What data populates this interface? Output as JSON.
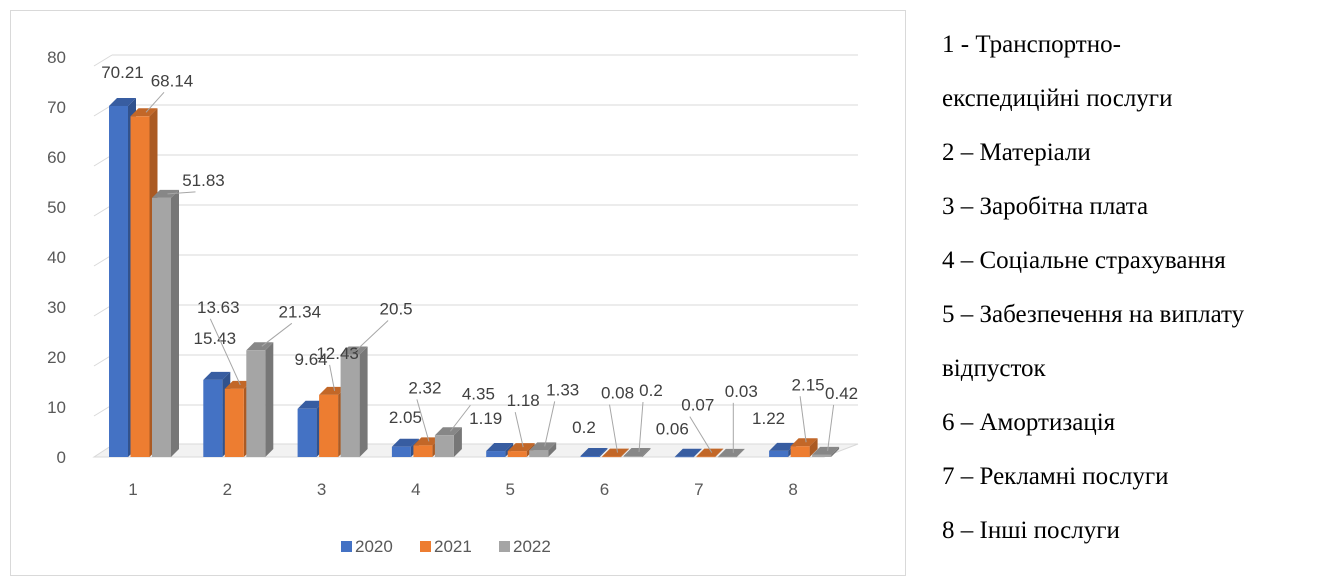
{
  "chart_data": {
    "type": "bar",
    "categories": [
      "1",
      "2",
      "3",
      "4",
      "5",
      "6",
      "7",
      "8"
    ],
    "series": [
      {
        "name": "2020",
        "color": "#4472C4",
        "values": [
          70.21,
          15.43,
          9.64,
          2.05,
          1.19,
          0.2,
          0.06,
          1.22
        ]
      },
      {
        "name": "2021",
        "color": "#ED7D31",
        "values": [
          68.14,
          13.63,
          12.43,
          2.32,
          1.18,
          0.08,
          0.07,
          2.15
        ]
      },
      {
        "name": "2022",
        "color": "#A5A5A5",
        "values": [
          51.83,
          21.34,
          20.5,
          4.35,
          1.33,
          0.2,
          0.03,
          0.42
        ]
      }
    ],
    "ylim": [
      0,
      80
    ],
    "yticks": [
      0,
      10,
      20,
      30,
      40,
      50,
      60,
      70,
      80
    ],
    "grid": true,
    "legend": "bottom",
    "style": "3d-clustered-column"
  },
  "side_legend": {
    "lines": [
      "1 - Транспортно-",
      "експедиційні послуги",
      "2 – Матеріали",
      "3 – Заробітна плата",
      "4 – Соціальне страхування",
      "5 – Забезпечення на виплату",
      "відпусток",
      "6 – Амортизація",
      "7 – Рекламні послуги",
      "8 – Інші послуги"
    ]
  }
}
